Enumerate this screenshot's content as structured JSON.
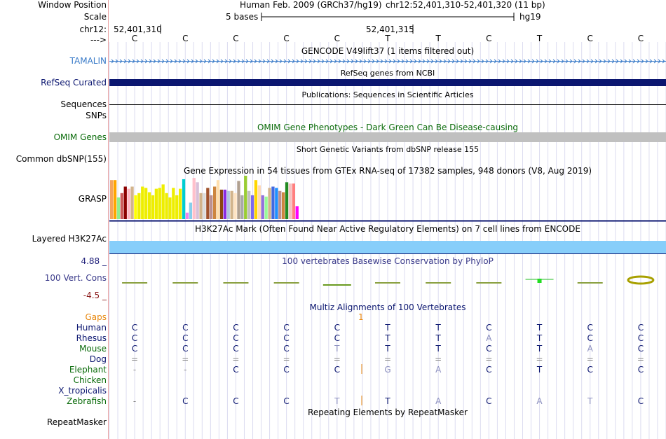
{
  "colors": {
    "navy": "#0b1670",
    "pale": "#8b8fbf",
    "green": "#0a6b0a",
    "orange": "#e8870d",
    "tamalin": "#3a7bc8",
    "refseq": "#0b1670",
    "omim": "#c0c0c0",
    "h3k27": "#87cefa",
    "cons_pos": "#1f1f7a",
    "cons_neg": "#8b1a1a"
  },
  "header": {
    "window_position_label": "Window Position",
    "assembly": "Human Feb. 2009 (GRCh37/hg19)",
    "position": "chr12:52,401,310-52,401,320 (11 bp)",
    "scale_label": "Scale",
    "scale_bases": "5 bases",
    "scale_db": "hg19",
    "chrom_label": "chr12:",
    "pos1": "52,401,310",
    "pos2": "52,401,315",
    "strand_label": "--->"
  },
  "bases": [
    "C",
    "C",
    "C",
    "C",
    "C",
    "T",
    "T",
    "C",
    "T",
    "C",
    "C"
  ],
  "tracks": {
    "gencode_title": "GENCODE V49lift37 (1 items filtered out)",
    "tamalin_label": "TAMALIN",
    "refseq_title": "RefSeq genes from NCBI",
    "refseq_label": "RefSeq Curated",
    "pubs_title": "Publications: Sequences in Scientific Articles",
    "sequences_label": "Sequences",
    "snps_label": "SNPs",
    "omim_title": "OMIM Gene Phenotypes - Dark Green Can Be Disease-causing",
    "omim_label": "OMIM Genes",
    "dbsnp_title": "Short Genetic Variants from dbSNP release 155",
    "dbsnp_label": "Common dbSNP(155)",
    "gtex_title": "Gene Expression in 54 tissues from GTEx RNA-seq of 17382 samples, 948 donors (V8, Aug 2019)",
    "grasp_label": "GRASP",
    "h3k_title": "H3K27Ac Mark (Often Found Near Active Regulatory Elements) on 7 cell lines from ENCODE",
    "h3k_label": "Layered H3K27Ac",
    "phylop_title": "100 vertebrates Basewise Conservation by PhyloP",
    "cons_label": "100 Vert. Cons",
    "cons_max": "4.88 _",
    "cons_min": "-4.5 _",
    "multiz_title": "Multiz Alignments of 100 Vertebrates",
    "gaps_label": "Gaps",
    "gap_count": "1",
    "repeat_title": "Repeating Elements by RepeatMasker",
    "repeat_label": "RepeatMasker"
  },
  "gtex_bars": [
    {
      "v": 0.9,
      "c": "#f4a460"
    },
    {
      "v": 0.9,
      "c": "#ffa500"
    },
    {
      "v": 0.5,
      "c": "#90ee90"
    },
    {
      "v": 0.6,
      "c": "#cd5c5c"
    },
    {
      "v": 0.75,
      "c": "#8b0000"
    },
    {
      "v": 0.7,
      "c": "#ffb6c1"
    },
    {
      "v": 0.75,
      "c": "#d2b48c"
    },
    {
      "v": 0.55,
      "c": "#ffff00"
    },
    {
      "v": 0.6,
      "c": "#eeee00"
    },
    {
      "v": 0.75,
      "c": "#eeee00"
    },
    {
      "v": 0.72,
      "c": "#eeee00"
    },
    {
      "v": 0.62,
      "c": "#eeee00"
    },
    {
      "v": 0.55,
      "c": "#eeee00"
    },
    {
      "v": 0.7,
      "c": "#eeee00"
    },
    {
      "v": 0.72,
      "c": "#eeee00"
    },
    {
      "v": 0.8,
      "c": "#eeee00"
    },
    {
      "v": 0.6,
      "c": "#eeee00"
    },
    {
      "v": 0.5,
      "c": "#eeee00"
    },
    {
      "v": 0.72,
      "c": "#eeee00"
    },
    {
      "v": 0.55,
      "c": "#eeee00"
    },
    {
      "v": 0.7,
      "c": "#eeee00"
    },
    {
      "v": 0.92,
      "c": "#00ced1"
    },
    {
      "v": 0.15,
      "c": "#ee82ee"
    },
    {
      "v": 0.38,
      "c": "#87ceeb"
    },
    {
      "v": 0.95,
      "c": "#ffc0cb"
    },
    {
      "v": 0.85,
      "c": "#d8bfd8"
    },
    {
      "v": 0.6,
      "c": "#d2b48c"
    },
    {
      "v": 0.6,
      "c": "#dcdcdc"
    },
    {
      "v": 0.72,
      "c": "#a0522d"
    },
    {
      "v": 0.55,
      "c": "#bc8f8f"
    },
    {
      "v": 0.75,
      "c": "#cd853f"
    },
    {
      "v": 0.9,
      "c": "#ffdead"
    },
    {
      "v": 0.68,
      "c": "#8b4513"
    },
    {
      "v": 0.68,
      "c": "#8a2be2"
    },
    {
      "v": 0.65,
      "c": "#b0c4de"
    },
    {
      "v": 0.65,
      "c": "#d2b48c"
    },
    {
      "v": 0.6,
      "c": "#ffe4c4"
    },
    {
      "v": 0.88,
      "c": "#b0a090"
    },
    {
      "v": 0.55,
      "c": "#a9a9a9"
    },
    {
      "v": 1.0,
      "c": "#9acd32"
    },
    {
      "v": 0.65,
      "c": "#c0c0c0"
    },
    {
      "v": 0.55,
      "c": "#7b68ee"
    },
    {
      "v": 0.9,
      "c": "#ffd700"
    },
    {
      "v": 0.78,
      "c": "#ffdab9"
    },
    {
      "v": 0.55,
      "c": "#9370db"
    },
    {
      "v": 0.52,
      "c": "#98fb98"
    },
    {
      "v": 0.72,
      "c": "#d2b48c"
    },
    {
      "v": 0.75,
      "c": "#4169e1"
    },
    {
      "v": 0.72,
      "c": "#1e90ff"
    },
    {
      "v": 0.65,
      "c": "#bc8f8f"
    },
    {
      "v": 0.62,
      "c": "#cd853f"
    },
    {
      "v": 0.85,
      "c": "#228b22"
    },
    {
      "v": 0.82,
      "c": "#f4c2c2"
    },
    {
      "v": 0.82,
      "c": "#ff7f7f"
    },
    {
      "v": 0.3,
      "c": "#ff00ff"
    }
  ],
  "phylop": [
    0.05,
    0.05,
    0.0,
    0.0,
    -0.1,
    0.0,
    0.0,
    0.0,
    0.3,
    -0.1,
    0.6
  ],
  "species": [
    {
      "name": "Human",
      "color": "#0b1670",
      "bases": [
        [
          "C",
          "n"
        ],
        [
          "C",
          "n"
        ],
        [
          "C",
          "n"
        ],
        [
          "C",
          "n"
        ],
        [
          "C",
          "n"
        ],
        [
          "T",
          "n"
        ],
        [
          "T",
          "n"
        ],
        [
          "C",
          "n"
        ],
        [
          "T",
          "n"
        ],
        [
          "C",
          "n"
        ],
        [
          "C",
          "n"
        ]
      ]
    },
    {
      "name": "Rhesus",
      "color": "#0b1670",
      "bases": [
        [
          "C",
          "n"
        ],
        [
          "C",
          "n"
        ],
        [
          "C",
          "n"
        ],
        [
          "C",
          "n"
        ],
        [
          "C",
          "n"
        ],
        [
          "T",
          "n"
        ],
        [
          "T",
          "n"
        ],
        [
          "A",
          "p"
        ],
        [
          "T",
          "n"
        ],
        [
          "C",
          "n"
        ],
        [
          "C",
          "n"
        ]
      ]
    },
    {
      "name": "Mouse",
      "color": "#0a6b0a",
      "bases": [
        [
          "C",
          "n"
        ],
        [
          "C",
          "n"
        ],
        [
          "C",
          "n"
        ],
        [
          "C",
          "n"
        ],
        [
          "T",
          "p"
        ],
        [
          "T",
          "n"
        ],
        [
          "T",
          "n"
        ],
        [
          "C",
          "n"
        ],
        [
          "T",
          "n"
        ],
        [
          "A",
          "p"
        ],
        [
          "C",
          "n"
        ]
      ]
    },
    {
      "name": "Dog",
      "color": "#0b1670",
      "bases": [
        [
          "=",
          "g"
        ],
        [
          "=",
          "g"
        ],
        [
          "=",
          "g"
        ],
        [
          "=",
          "g"
        ],
        [
          "=",
          "g"
        ],
        [
          "=",
          "g"
        ],
        [
          "=",
          "g"
        ],
        [
          "=",
          "g"
        ],
        [
          "=",
          "g"
        ],
        [
          "=",
          "g"
        ],
        [
          "=",
          "g"
        ]
      ]
    },
    {
      "name": "Elephant",
      "color": "#0a6b0a",
      "bases": [
        [
          "-",
          "g"
        ],
        [
          "-",
          "g"
        ],
        [
          "C",
          "n"
        ],
        [
          "C",
          "n"
        ],
        [
          "C",
          "n"
        ],
        [
          "G",
          "p"
        ],
        [
          "A",
          "p"
        ],
        [
          "C",
          "n"
        ],
        [
          "T",
          "n"
        ],
        [
          "C",
          "n"
        ],
        [
          "C",
          "n"
        ]
      ]
    },
    {
      "name": "Chicken",
      "color": "#0a6b0a",
      "bases": []
    },
    {
      "name": "X_tropicalis",
      "color": "#0b1670",
      "bases": []
    },
    {
      "name": "Zebrafish",
      "color": "#0a6b0a",
      "bases": [
        [
          "-",
          "g"
        ],
        [
          "C",
          "n"
        ],
        [
          "C",
          "n"
        ],
        [
          "C",
          "n"
        ],
        [
          "T",
          "p"
        ],
        [
          "T",
          "n"
        ],
        [
          "A",
          "p"
        ],
        [
          "C",
          "n"
        ],
        [
          "A",
          "p"
        ],
        [
          "T",
          "p"
        ],
        [
          "C",
          "n"
        ]
      ]
    }
  ]
}
